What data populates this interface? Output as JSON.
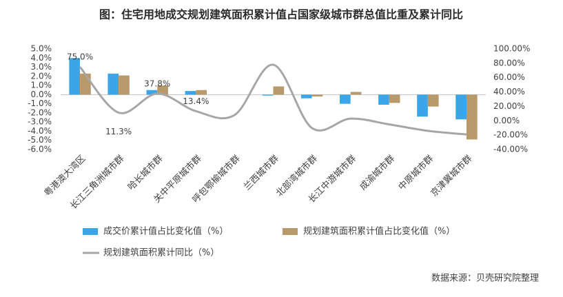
{
  "chart_data": {
    "type": "bar-line",
    "title": "图：住宅用地成交规划建筑面积累计值占国家级城市群总值比重及累计同比",
    "categories": [
      "粤港澳大湾区",
      "长江三角洲城市群",
      "哈长城市群",
      "关中平原城市群",
      "呼包鄂榆城市群",
      "兰西城市群",
      "北部湾城市群",
      "长江中游城市群",
      "成渝城市群",
      "中原城市群",
      "京津冀城市群"
    ],
    "series": [
      {
        "name": "成交价累计值占比变化值（%）",
        "type": "bar",
        "color": "#3ba5e8",
        "values": [
          4.0,
          2.3,
          0.5,
          0.4,
          0,
          -0.1,
          -0.4,
          -1.0,
          -1.1,
          -2.4,
          -2.7
        ]
      },
      {
        "name": "规划建筑面积累计值占比变化值（%）",
        "type": "bar",
        "color": "#b8996a",
        "values": [
          2.3,
          2.1,
          1.0,
          0.5,
          0,
          0.9,
          -0.2,
          0.3,
          -0.9,
          -1.3,
          -4.9
        ]
      },
      {
        "name": "规划建筑面积累计同比（%）",
        "type": "line",
        "axis": "y2",
        "color": "#a6a6a6",
        "values": [
          75.0,
          11.3,
          37.8,
          13.4,
          8,
          78,
          -10,
          3,
          -5,
          -14,
          -19
        ],
        "value_labels": [
          "75.0%",
          "11.3%",
          "37.8%",
          "13.4%",
          null,
          null,
          null,
          null,
          null,
          null,
          null
        ]
      }
    ],
    "ylim": [
      -6,
      5
    ],
    "yticks": [
      {
        "value": 5,
        "label": "5.0%"
      },
      {
        "value": 4,
        "label": "4.0%"
      },
      {
        "value": 3,
        "label": "3.0%"
      },
      {
        "value": 2,
        "label": "2.0%"
      },
      {
        "value": 1,
        "label": "1.0%"
      },
      {
        "value": 0,
        "label": "0.0%"
      },
      {
        "value": -1,
        "label": "-1.0%"
      },
      {
        "value": -2,
        "label": "-2.0%"
      },
      {
        "value": -3,
        "label": "-3.0%"
      },
      {
        "value": -4,
        "label": "-4.0%"
      },
      {
        "value": -5,
        "label": "-5.0%"
      },
      {
        "value": -6,
        "label": "-6.0%"
      }
    ],
    "y2lim": [
      -40,
      100
    ],
    "y2ticks": [
      {
        "value": 100,
        "label": "100.00%"
      },
      {
        "value": 80,
        "label": "80.00%"
      },
      {
        "value": 60,
        "label": "60.00%"
      },
      {
        "value": 40,
        "label": "40.00%"
      },
      {
        "value": 20,
        "label": "20.00%"
      },
      {
        "value": 0,
        "label": "0.00%"
      },
      {
        "value": -20,
        "label": "-20.00%"
      },
      {
        "value": -40,
        "label": "-40.00%"
      }
    ],
    "legend": "bottom",
    "source": "数据来源：贝壳研究院整理"
  }
}
